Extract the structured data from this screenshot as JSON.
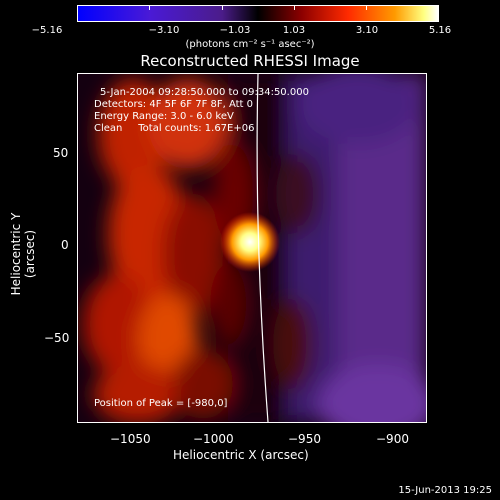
{
  "colorbar": {
    "ticks": [
      "−5.16",
      "−3.10",
      "−1.03",
      "1.03",
      "3.10",
      "5.16"
    ],
    "units": "(photons cm⁻² s⁻¹ asec⁻²)"
  },
  "title": "Reconstructed RHESSI Image",
  "info": {
    "time": "5-Jan-2004 09:28:50.000 to 09:34:50.000",
    "detectors": "Detectors: 4F 5F 6F 7F 8F, Att 0",
    "energy": "Energy Range: 3.0 - 6.0 keV",
    "clean": "Clean     Total counts: 1.67E+06",
    "peak": "Position of Peak = [-980,0]"
  },
  "axes": {
    "xlabel": "Heliocentric X (arcsec)",
    "ylabel": "Heliocentric Y (arcsec)",
    "xticks": [
      "−1050",
      "−1000",
      "−950",
      "−900"
    ],
    "yticks": [
      "50",
      "0",
      "−50"
    ]
  },
  "footer": "15-Jun-2013 19:25",
  "colors": {
    "background": "#000000",
    "text": "#ffffff",
    "hot_core": "#ffff99",
    "violet_region": "#5a2a8a"
  }
}
